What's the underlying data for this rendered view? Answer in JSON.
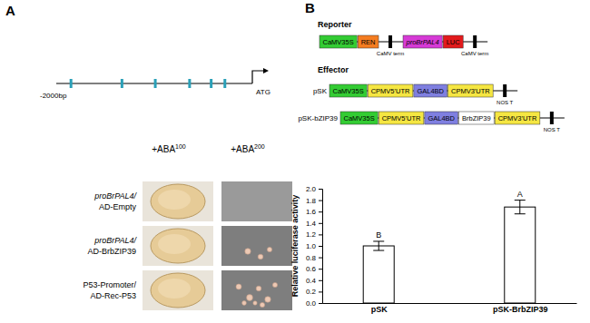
{
  "panel_a": {
    "label": "A",
    "promoter": {
      "start_label": "-2000bp",
      "end_label": "ATG",
      "xlim": [
        -2000,
        0
      ],
      "elements_bp": [
        -1850,
        -1330,
        -990,
        -640,
        -420,
        -280
      ]
    },
    "columns": [
      {
        "text": "+ABA",
        "superscript": "100"
      },
      {
        "text": "+ABA",
        "superscript": "200"
      }
    ],
    "rows": [
      [
        "proBrPAL4/",
        "AD-Empty"
      ],
      [
        "proBrPAL4/",
        "AD-BrbZIP39"
      ],
      [
        "P53-Promoter/",
        "AD-Rec-P53"
      ]
    ]
  },
  "panel_b": {
    "label": "B",
    "reporter": {
      "title": "Reporter",
      "parts": [
        {
          "label": "CaMV35S",
          "color": "#33cc33"
        },
        {
          "label": "REN",
          "color": "#f47c20"
        },
        {
          "label": "CaMV term",
          "terminator": true
        },
        {
          "label": "proBrPAL4",
          "color": "#d63ad6",
          "italic": true
        },
        {
          "label": "LUC",
          "color": "#e31a1c"
        },
        {
          "label": "CaMV term",
          "terminator": true
        }
      ]
    },
    "effector": {
      "title": "Effector",
      "constructs": [
        {
          "name": "pSK",
          "parts": [
            {
              "label": "CaMV35S",
              "color": "#33cc33"
            },
            {
              "label": "CPMV5'UTR",
              "color": "#f5e642"
            },
            {
              "label": "GAL4BD",
              "color": "#7f7fe0"
            },
            {
              "label": "CPMV3'UTR",
              "color": "#f5e642"
            },
            {
              "label": "NOS T",
              "terminator": true
            }
          ]
        },
        {
          "name": "pSK-bZIP39",
          "parts": [
            {
              "label": "CaMV35S",
              "color": "#33cc33"
            },
            {
              "label": "CPMV5'UTR",
              "color": "#f5e642"
            },
            {
              "label": "GAL4BD",
              "color": "#7f7fe0"
            },
            {
              "label": "BrbZIP39",
              "color": "#ffffff"
            },
            {
              "label": "CPMV3'UTR",
              "color": "#f5e642"
            },
            {
              "label": "NOS T",
              "terminator": true
            }
          ]
        }
      ]
    }
  },
  "chart_data": {
    "type": "bar",
    "categories": [
      "pSK",
      "pSK-BrbZIP39"
    ],
    "values": [
      1.0,
      1.68
    ],
    "errors": [
      0.08,
      0.12
    ],
    "significance": [
      "B",
      "A"
    ],
    "color": "#ffffff",
    "ylabel": "Relative luciferase activity",
    "ylim": [
      0,
      2
    ],
    "yticks": [
      {
        "value": 0,
        "label": "0.0"
      },
      {
        "value": 0.2,
        "label": "0.2"
      },
      {
        "value": 0.4,
        "label": "0.4"
      },
      {
        "value": 0.6,
        "label": "0.6"
      },
      {
        "value": 0.8,
        "label": "0.8"
      },
      {
        "value": 1,
        "label": "1.0"
      },
      {
        "value": 1.2,
        "label": "1.2"
      },
      {
        "value": 1.4,
        "label": "1.4"
      },
      {
        "value": 1.6,
        "label": "1.6"
      },
      {
        "value": 1.8,
        "label": "1.8"
      },
      {
        "value": 2,
        "label": "2.0"
      }
    ],
    "grid": false
  }
}
